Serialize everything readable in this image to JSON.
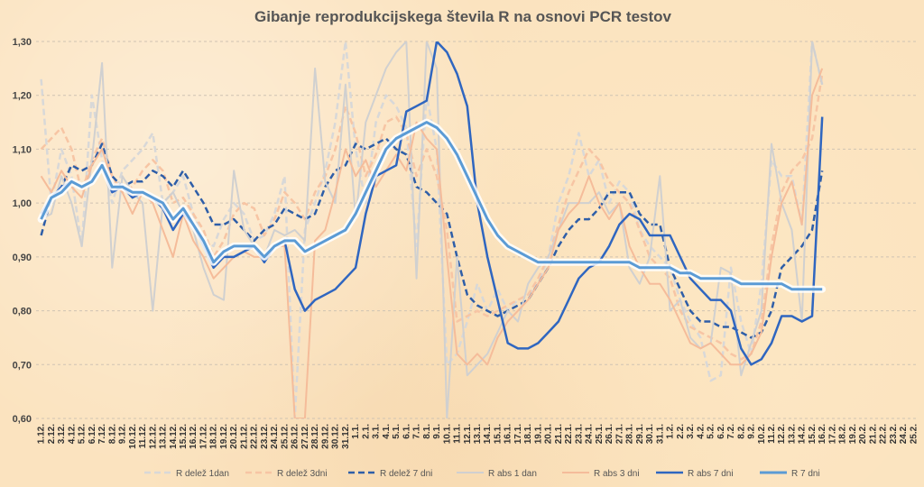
{
  "chart_data": {
    "type": "line",
    "title": "Gibanje reprodukcijskega števila R na osnovi PCR testov",
    "xlabel": "",
    "ylabel": "",
    "ylim": [
      0.6,
      1.3
    ],
    "yticks": [
      "0,60",
      "0,70",
      "0,80",
      "0,90",
      "1,00",
      "1,10",
      "1,20",
      "1,30"
    ],
    "grid": "horizontal dashed",
    "legend_position": "bottom",
    "x": [
      "1.12.",
      "2.12.",
      "3.12.",
      "4.12.",
      "5.12.",
      "6.12.",
      "7.12.",
      "8.12.",
      "9.12.",
      "10.12.",
      "11.12.",
      "12.12.",
      "13.12.",
      "14.12.",
      "15.12.",
      "16.12.",
      "17.12.",
      "18.12.",
      "19.12.",
      "20.12.",
      "21.12.",
      "22.12.",
      "23.12.",
      "24.12.",
      "25.12.",
      "26.12.",
      "27.12.",
      "28.12.",
      "29.12.",
      "30.12.",
      "31.12.",
      "1.1.",
      "2.1.",
      "3.1.",
      "4.1.",
      "5.1.",
      "6.1.",
      "7.1.",
      "8.1.",
      "9.1.",
      "10.1.",
      "11.1.",
      "12.1.",
      "13.1.",
      "14.1.",
      "15.1.",
      "16.1.",
      "17.1.",
      "18.1.",
      "19.1.",
      "20.1.",
      "21.1.",
      "22.1.",
      "23.1.",
      "24.1.",
      "25.1.",
      "26.1.",
      "27.1.",
      "28.1.",
      "29.1.",
      "30.1.",
      "31.1.",
      "1.2.",
      "2.2.",
      "3.2.",
      "4.2.",
      "5.2.",
      "6.2.",
      "7.2.",
      "8.2.",
      "9.2.",
      "10.2.",
      "11.2.",
      "12.2.",
      "13.2.",
      "14.2.",
      "15.2.",
      "16.2.",
      "17.2.",
      "18.2.",
      "19.2.",
      "20.2.",
      "21.2.",
      "22.2.",
      "23.2.",
      "24.2.",
      "25.2."
    ],
    "series": [
      {
        "name": "R delež 1dan",
        "color": "#d8d8d8",
        "style": "dashed",
        "width": 2.5,
        "values": [
          1.23,
          1.0,
          1.1,
          1.05,
          0.92,
          1.2,
          1.08,
          1.0,
          1.06,
          1.08,
          1.1,
          1.13,
          1.0,
          1.02,
          1.05,
          0.98,
          0.93,
          0.92,
          0.97,
          1.0,
          0.98,
          0.93,
          0.94,
          0.98,
          1.05,
          0.6,
          0.95,
          1.0,
          1.06,
          1.15,
          1.3,
          1.1,
          1.0,
          1.15,
          1.2,
          1.18,
          1.14,
          0.92,
          1.2,
          1.1,
          0.7,
          0.72,
          0.78,
          0.85,
          0.8,
          0.84,
          0.8,
          0.82,
          0.83,
          0.85,
          0.9,
          1.0,
          1.05,
          1.13,
          1.05,
          1.08,
          1.0,
          1.04,
          1.02,
          0.95,
          0.92,
          0.9,
          0.88,
          0.82,
          0.78,
          0.75,
          0.67,
          0.68,
          0.88,
          0.78,
          0.72,
          0.85,
          1.08,
          1.05,
          1.05,
          0.96,
          1.3,
          1.22,
          null,
          null,
          null,
          null,
          null,
          null,
          null,
          null,
          null
        ]
      },
      {
        "name": "R delež 3dni",
        "color": "#f7c5a4",
        "style": "dashed",
        "width": 2.5,
        "values": [
          1.1,
          1.12,
          1.14,
          1.1,
          1.02,
          1.08,
          1.12,
          1.05,
          1.02,
          1.03,
          1.06,
          1.08,
          1.06,
          1.0,
          1.01,
          0.98,
          0.95,
          0.9,
          0.93,
          0.98,
          1.0,
          0.99,
          0.94,
          0.97,
          1.02,
          1.0,
          0.97,
          1.02,
          1.05,
          1.1,
          1.18,
          1.13,
          1.05,
          1.09,
          1.15,
          1.16,
          1.13,
          1.05,
          1.1,
          1.05,
          0.95,
          0.78,
          0.79,
          0.8,
          0.79,
          0.8,
          0.81,
          0.82,
          0.83,
          0.86,
          0.9,
          0.96,
          1.02,
          1.06,
          1.1,
          1.08,
          1.04,
          1.02,
          1.0,
          0.95,
          0.9,
          0.88,
          0.86,
          0.8,
          0.77,
          0.76,
          0.75,
          0.74,
          0.72,
          0.71,
          0.72,
          0.78,
          0.92,
          1.02,
          1.06,
          1.08,
          1.12,
          1.24,
          null,
          null,
          null,
          null,
          null,
          null,
          null,
          null,
          null
        ]
      },
      {
        "name": "R delež 7 dni",
        "color": "#2e5ea8",
        "style": "dashed",
        "width": 2.5,
        "values": [
          0.94,
          1.01,
          1.03,
          1.07,
          1.06,
          1.07,
          1.11,
          1.05,
          1.03,
          1.04,
          1.04,
          1.06,
          1.05,
          1.03,
          1.06,
          1.03,
          1.0,
          0.96,
          0.96,
          0.97,
          0.95,
          0.93,
          0.95,
          0.96,
          0.99,
          0.98,
          0.97,
          0.98,
          1.03,
          1.06,
          1.07,
          1.11,
          1.1,
          1.11,
          1.12,
          1.1,
          1.09,
          1.03,
          1.02,
          1.0,
          0.98,
          0.9,
          0.83,
          0.81,
          0.8,
          0.79,
          0.8,
          0.81,
          0.82,
          0.85,
          0.88,
          0.92,
          0.95,
          0.97,
          0.97,
          0.99,
          1.02,
          1.02,
          1.02,
          0.98,
          0.96,
          0.96,
          0.88,
          0.84,
          0.8,
          0.78,
          0.78,
          0.77,
          0.77,
          0.76,
          0.75,
          0.76,
          0.8,
          0.88,
          0.9,
          0.92,
          0.95,
          1.06,
          null,
          null,
          null,
          null,
          null,
          null,
          null,
          null,
          null
        ]
      },
      {
        "name": "R abs 1 dan",
        "color": "#d0d0d0",
        "style": "solid",
        "width": 2,
        "values": [
          0.97,
          0.98,
          1.05,
          1.0,
          0.92,
          1.08,
          1.26,
          0.88,
          1.05,
          1.02,
          1.0,
          0.8,
          1.0,
          1.02,
          0.98,
          0.95,
          0.88,
          0.83,
          0.82,
          1.06,
          0.95,
          0.92,
          0.9,
          0.95,
          0.94,
          0.95,
          0.93,
          1.25,
          1.04,
          1.0,
          1.22,
          0.97,
          1.15,
          1.2,
          1.25,
          1.28,
          1.3,
          0.86,
          1.3,
          1.25,
          0.6,
          0.9,
          0.68,
          0.7,
          0.72,
          0.76,
          0.8,
          0.78,
          0.85,
          0.88,
          0.9,
          0.95,
          1.0,
          1.0,
          1.0,
          1.02,
          0.98,
          1.0,
          0.88,
          0.85,
          0.9,
          1.05,
          0.8,
          0.82,
          0.75,
          0.73,
          0.74,
          0.88,
          0.87,
          0.68,
          0.74,
          0.8,
          1.11,
          1.0,
          0.95,
          0.78,
          1.3,
          1.22,
          null,
          null,
          null,
          null,
          null,
          null,
          null,
          null,
          null
        ]
      },
      {
        "name": "R abs 3 dni",
        "color": "#f5bc9a",
        "style": "solid",
        "width": 2,
        "values": [
          1.05,
          1.02,
          1.06,
          1.03,
          1.01,
          1.07,
          1.1,
          1.04,
          1.02,
          0.98,
          1.02,
          1.0,
          0.95,
          0.9,
          0.98,
          0.93,
          0.9,
          0.86,
          0.88,
          0.9,
          0.91,
          0.9,
          0.9,
          0.92,
          0.92,
          0.6,
          0.6,
          0.93,
          0.95,
          1.02,
          1.1,
          1.05,
          1.08,
          1.03,
          1.06,
          1.09,
          1.06,
          1.15,
          1.12,
          1.1,
          0.9,
          0.72,
          0.7,
          0.72,
          0.7,
          0.75,
          0.78,
          0.8,
          0.82,
          0.85,
          0.88,
          0.95,
          0.98,
          1.0,
          1.05,
          1.0,
          0.97,
          1.0,
          0.92,
          0.88,
          0.85,
          0.85,
          0.82,
          0.78,
          0.74,
          0.73,
          0.74,
          0.72,
          0.7,
          0.7,
          0.72,
          0.76,
          0.9,
          1.0,
          1.04,
          0.96,
          1.2,
          1.25,
          null,
          null,
          null,
          null,
          null,
          null,
          null,
          null,
          null
        ]
      },
      {
        "name": "R abs 7 dni",
        "color": "#2f66c0",
        "style": "solid",
        "width": 2.5,
        "values": [
          0.98,
          1.01,
          1.03,
          1.04,
          1.03,
          1.04,
          1.07,
          1.02,
          1.03,
          1.01,
          1.02,
          1.01,
          0.99,
          0.95,
          0.98,
          0.96,
          0.92,
          0.88,
          0.9,
          0.9,
          0.91,
          0.92,
          0.89,
          0.92,
          0.93,
          0.84,
          0.8,
          0.82,
          0.83,
          0.84,
          0.86,
          0.88,
          0.98,
          1.05,
          1.06,
          1.07,
          1.17,
          1.18,
          1.19,
          1.3,
          1.28,
          1.24,
          1.18,
          1.0,
          0.9,
          0.82,
          0.74,
          0.73,
          0.73,
          0.74,
          0.76,
          0.78,
          0.82,
          0.86,
          0.88,
          0.89,
          0.92,
          0.96,
          0.98,
          0.97,
          0.94,
          0.94,
          0.94,
          0.9,
          0.86,
          0.84,
          0.82,
          0.82,
          0.8,
          0.73,
          0.7,
          0.71,
          0.74,
          0.79,
          0.79,
          0.78,
          0.79,
          1.16,
          null,
          null,
          null,
          null,
          null,
          null,
          null,
          null,
          null
        ]
      },
      {
        "name": "R 7 dni",
        "color": "#5b9bd5",
        "style": "solid",
        "width": 3,
        "halo": true,
        "values": [
          0.97,
          1.01,
          1.02,
          1.04,
          1.03,
          1.04,
          1.07,
          1.03,
          1.03,
          1.02,
          1.02,
          1.01,
          1.0,
          0.97,
          0.99,
          0.96,
          0.93,
          0.89,
          0.91,
          0.92,
          0.92,
          0.92,
          0.9,
          0.92,
          0.93,
          0.93,
          0.91,
          0.92,
          0.93,
          0.94,
          0.95,
          0.98,
          1.02,
          1.06,
          1.1,
          1.12,
          1.13,
          1.14,
          1.15,
          1.14,
          1.12,
          1.09,
          1.05,
          1.01,
          0.97,
          0.94,
          0.92,
          0.91,
          0.9,
          0.89,
          0.89,
          0.89,
          0.89,
          0.89,
          0.89,
          0.89,
          0.89,
          0.89,
          0.89,
          0.88,
          0.88,
          0.88,
          0.88,
          0.87,
          0.87,
          0.86,
          0.86,
          0.86,
          0.86,
          0.85,
          0.85,
          0.85,
          0.85,
          0.85,
          0.84,
          0.84,
          0.84,
          0.84,
          null,
          null,
          null,
          null,
          null,
          null,
          null,
          null,
          null
        ]
      }
    ]
  }
}
